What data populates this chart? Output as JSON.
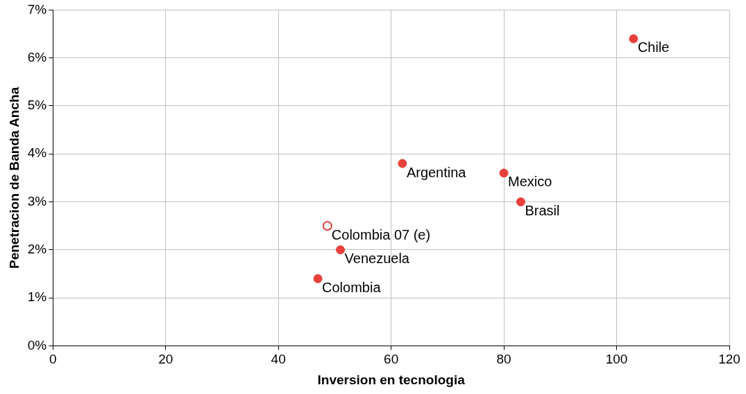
{
  "chart_data": {
    "type": "scatter",
    "xlabel": "Inversion en tecnologia",
    "ylabel": "Penetracion de Banda Ancha",
    "series": [
      {
        "color": "#e8403a",
        "x": [
          103,
          62,
          80,
          83,
          51,
          47
        ],
        "values": [
          6.4,
          3.8,
          3.6,
          3.0,
          2.0,
          1.4
        ]
      },
      {
        "color": "#e8403a",
        "x": [
          48.7
        ],
        "values": [
          2.5
        ]
      }
    ],
    "xlim": [
      0,
      120
    ],
    "xticks": [
      0,
      20,
      40,
      60,
      80,
      100,
      120
    ],
    "ylim": [
      0,
      7
    ],
    "yticks": [
      {
        "value": 0,
        "label": "0%"
      },
      {
        "value": 1,
        "label": "1%"
      },
      {
        "value": 2,
        "label": "2%"
      },
      {
        "value": 3,
        "label": "3%"
      },
      {
        "value": 4,
        "label": "4%"
      },
      {
        "value": 5,
        "label": "5%"
      },
      {
        "value": 6,
        "label": "6%"
      },
      {
        "value": 7,
        "label": "7%"
      }
    ],
    "grid": true,
    "marker": "circle",
    "legend": false,
    "annotations": [
      {
        "text": "Chile",
        "x": 103,
        "y": 6.4
      },
      {
        "text": "Argentina",
        "x": 62,
        "y": 3.8
      },
      {
        "text": "Mexico",
        "x": 80,
        "y": 3.6
      },
      {
        "text": "Brasil",
        "x": 83,
        "y": 3.0
      },
      {
        "text": "Colombia 07 (e)",
        "x": 48.7,
        "y": 2.5
      },
      {
        "text": "Venezuela",
        "x": 51,
        "y": 2.0
      },
      {
        "text": "Colombia",
        "x": 47,
        "y": 1.4
      }
    ]
  }
}
